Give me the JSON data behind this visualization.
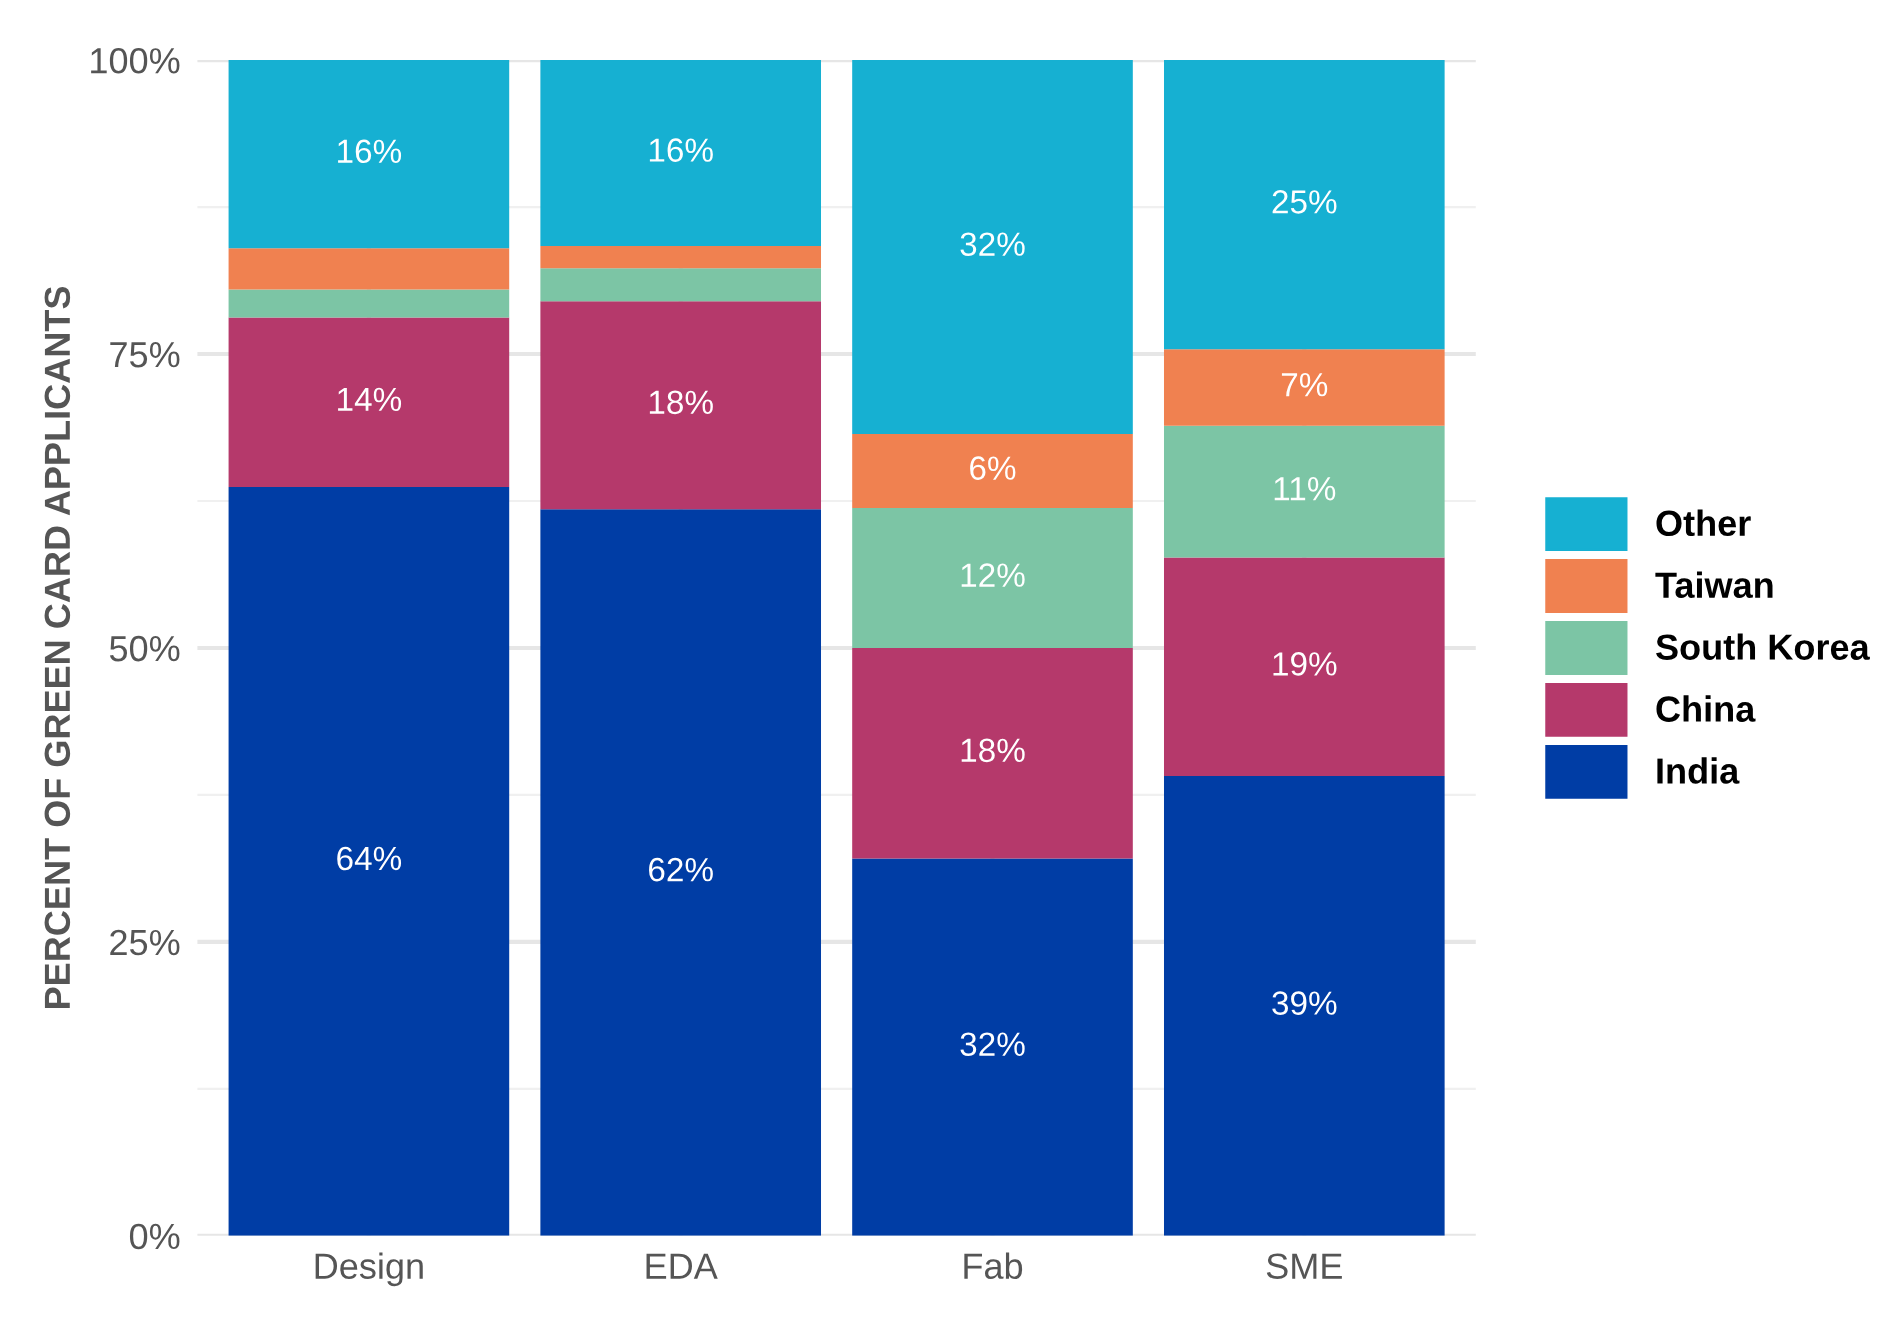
{
  "chart_data": {
    "type": "bar",
    "stacked": true,
    "ylabel": "PERCENT OF GREEN CARD APPLICANTS",
    "categories": [
      "Design",
      "EDA",
      "Fab",
      "SME"
    ],
    "series": [
      {
        "name": "India",
        "color": "#003da5",
        "values": [
          63.7,
          61.8,
          32.1,
          39.1
        ],
        "value_labels": [
          "64%",
          "62%",
          "32%",
          "39%"
        ]
      },
      {
        "name": "China",
        "color": "#b5396b",
        "values": [
          14.4,
          17.7,
          17.9,
          18.6
        ],
        "value_labels": [
          "14%",
          "18%",
          "18%",
          "19%"
        ]
      },
      {
        "name": "South Korea",
        "color": "#7cc5a5",
        "values": [
          2.4,
          2.8,
          11.9,
          11.2
        ],
        "value_labels": [
          null,
          null,
          "12%",
          "11%"
        ]
      },
      {
        "name": "Taiwan",
        "color": "#f08150",
        "values": [
          3.5,
          1.9,
          6.3,
          6.5
        ],
        "value_labels": [
          null,
          null,
          "6%",
          "7%"
        ]
      },
      {
        "name": "Other",
        "color": "#16b0d2",
        "values": [
          16,
          15.8,
          31.8,
          24.6
        ],
        "value_labels": [
          "16%",
          "16%",
          "32%",
          "25%"
        ]
      }
    ],
    "ylim": [
      0,
      100
    ],
    "yticks": [
      {
        "value": 0,
        "label": "0%"
      },
      {
        "value": 25,
        "label": "25%"
      },
      {
        "value": 50,
        "label": "50%"
      },
      {
        "value": 75,
        "label": "75%"
      },
      {
        "value": 100,
        "label": "100%"
      }
    ],
    "grid": true,
    "legend": "right"
  }
}
